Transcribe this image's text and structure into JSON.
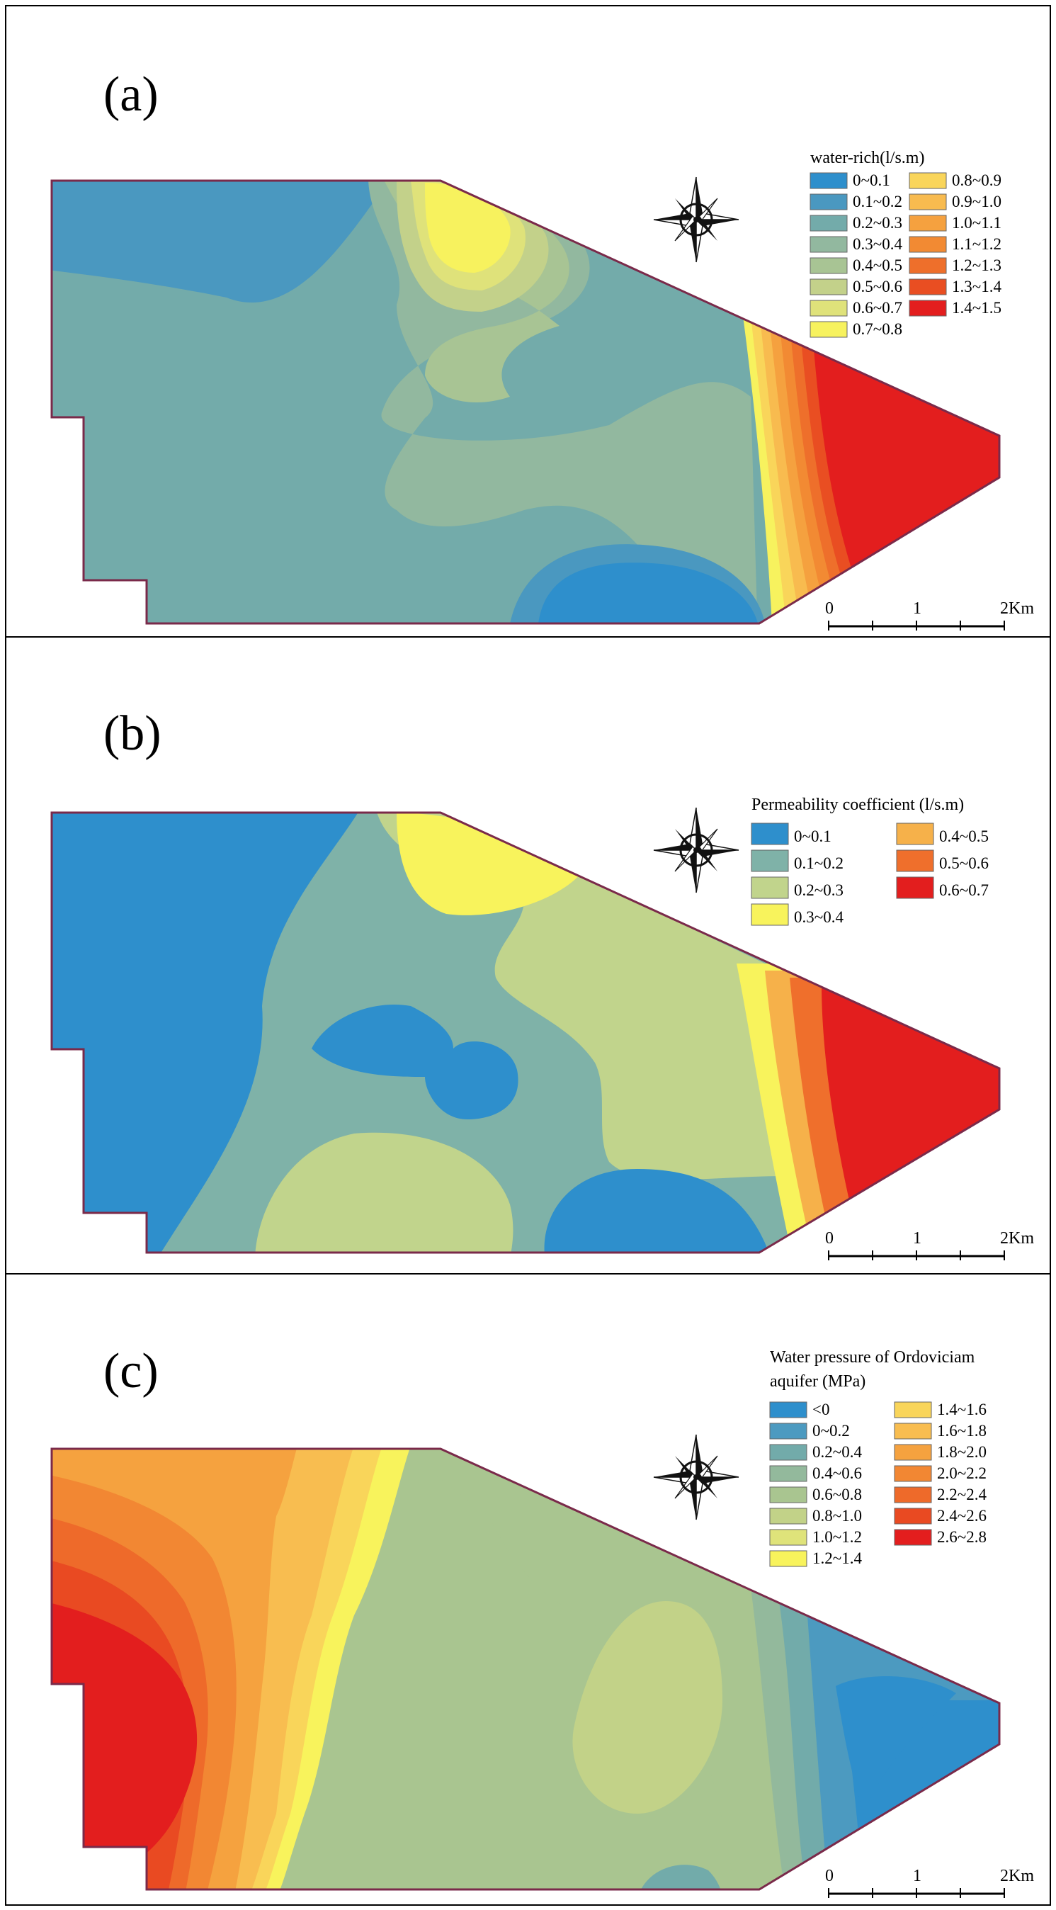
{
  "panels": [
    {
      "id": "a",
      "label": "(a)",
      "legend_title_lines": [
        "water-rich(l/s.m)"
      ],
      "legend_columns": 2,
      "classes": [
        {
          "label": "0~0.1",
          "color": "#2e8fcc"
        },
        {
          "label": "0.1~0.2",
          "color": "#4a98c0"
        },
        {
          "label": "0.2~0.3",
          "color": "#73abaa"
        },
        {
          "label": "0.3~0.4",
          "color": "#92b89f"
        },
        {
          "label": "0.4~0.5",
          "color": "#a8c494"
        },
        {
          "label": "0.5~0.6",
          "color": "#c3d18a"
        },
        {
          "label": "0.6~0.7",
          "color": "#dfe27a"
        },
        {
          "label": "0.7~0.8",
          "color": "#f7f25e"
        },
        {
          "label": "0.8~0.9",
          "color": "#f9d55a"
        },
        {
          "label": "0.9~1.0",
          "color": "#f8bb4f"
        },
        {
          "label": "1.0~1.1",
          "color": "#f5a13f"
        },
        {
          "label": "1.1~1.2",
          "color": "#f28a33"
        },
        {
          "label": "1.2~1.3",
          "color": "#ee6f2b"
        },
        {
          "label": "1.3~1.4",
          "color": "#e94e22"
        },
        {
          "label": "1.4~1.5",
          "color": "#e31e1e"
        }
      ]
    },
    {
      "id": "b",
      "label": "(b)",
      "legend_title_lines": [
        "Permeability coefficient (l/s.m)"
      ],
      "legend_columns": 2,
      "classes": [
        {
          "label": "0~0.1",
          "color": "#2e8fcc"
        },
        {
          "label": "0.1~0.2",
          "color": "#7fb2a8"
        },
        {
          "label": "0.2~0.3",
          "color": "#c1d48c"
        },
        {
          "label": "0.3~0.4",
          "color": "#f8f35c"
        },
        {
          "label": "0.4~0.5",
          "color": "#f6b14a"
        },
        {
          "label": "0.5~0.6",
          "color": "#ef6f2c"
        },
        {
          "label": "0.6~0.7",
          "color": "#e31e1e"
        }
      ]
    },
    {
      "id": "c",
      "label": "(c)",
      "legend_title_lines": [
        "Water pressure of Ordoviciam",
        "aquifer (MPa)"
      ],
      "legend_columns": 2,
      "classes": [
        {
          "label": "<0",
          "color": "#2e8fcc"
        },
        {
          "label": "0~0.2",
          "color": "#4c9ac0"
        },
        {
          "label": "0.2~0.4",
          "color": "#72abaa"
        },
        {
          "label": "0.4~0.6",
          "color": "#93b99c"
        },
        {
          "label": "0.6~0.8",
          "color": "#a9c590"
        },
        {
          "label": "0.8~1.0",
          "color": "#c2d288"
        },
        {
          "label": "1.0~1.2",
          "color": "#dfe37a"
        },
        {
          "label": "1.2~1.4",
          "color": "#f8f35c"
        },
        {
          "label": "1.4~1.6",
          "color": "#f9d55a"
        },
        {
          "label": "1.6~1.8",
          "color": "#f8bd50"
        },
        {
          "label": "1.8~2.0",
          "color": "#f5a23f"
        },
        {
          "label": "2.0~2.2",
          "color": "#f28733"
        },
        {
          "label": "2.2~2.4",
          "color": "#ee6a2a"
        },
        {
          "label": "2.4~2.6",
          "color": "#e94a22"
        },
        {
          "label": "2.6~2.8",
          "color": "#e31e1e"
        }
      ]
    }
  ],
  "scale_bar": {
    "labels": [
      "0",
      "1",
      "2Km"
    ],
    "unit": "Km"
  },
  "north_arrow_icon": "compass-rose-icon",
  "boundary_color": "#7a2a4a"
}
